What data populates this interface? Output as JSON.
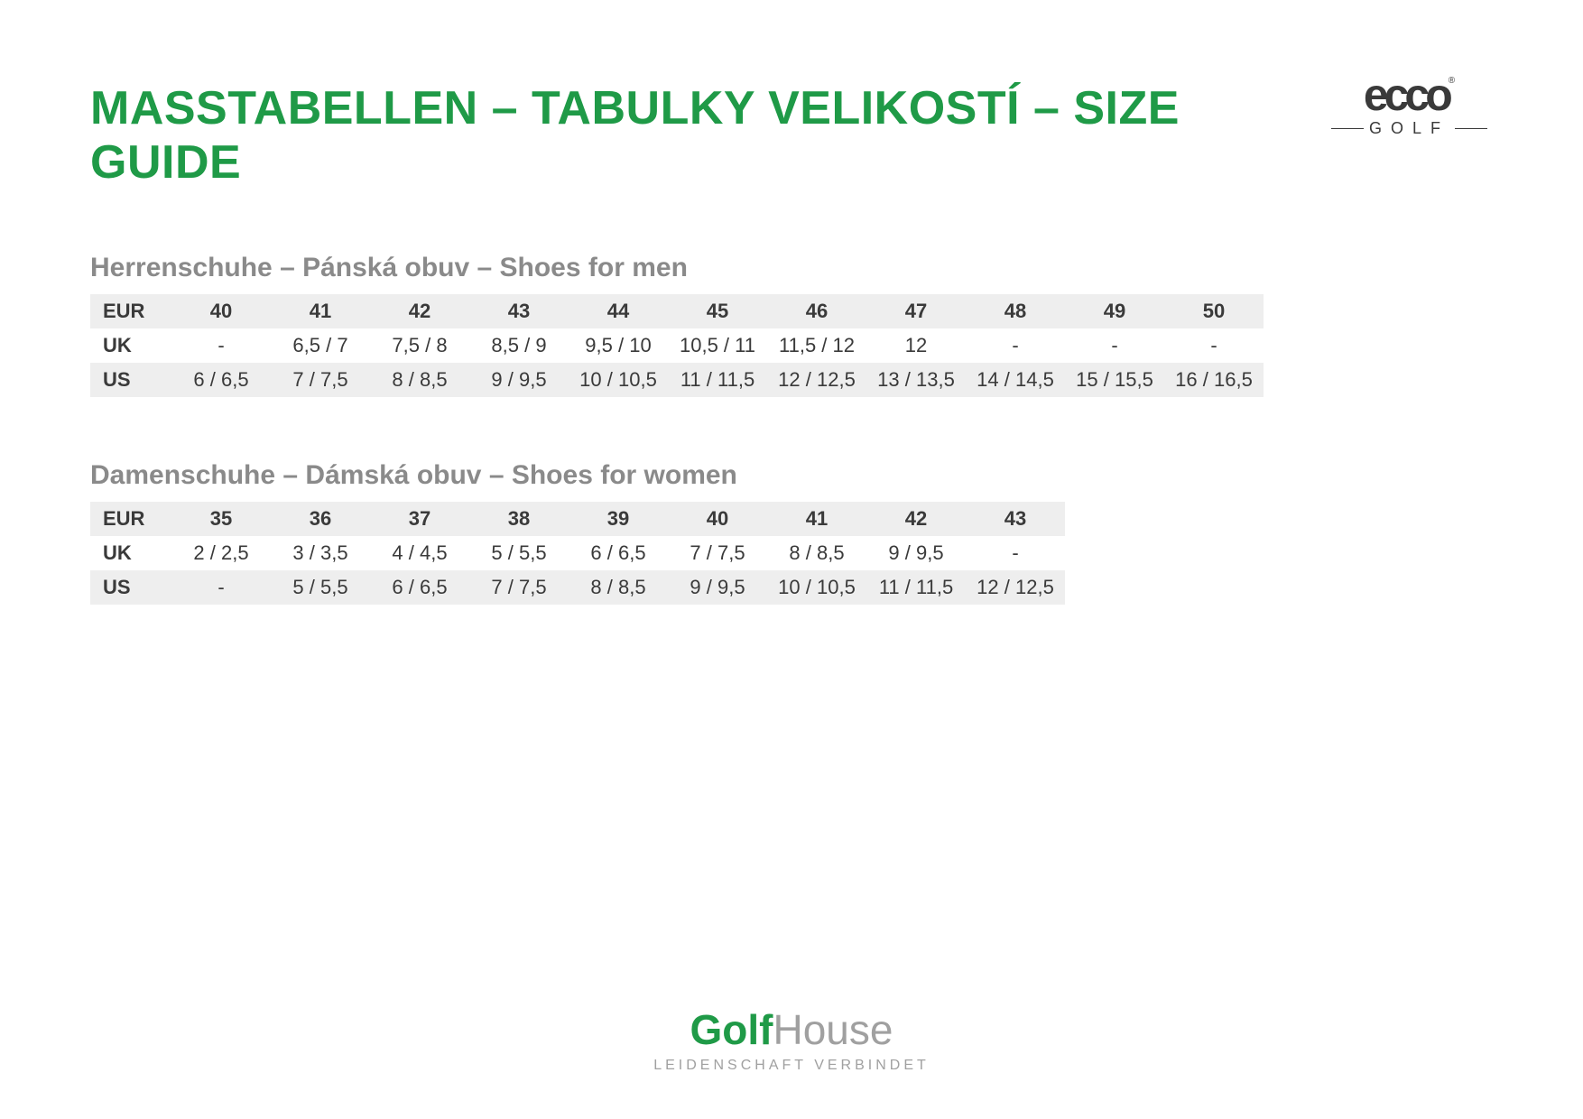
{
  "colors": {
    "title_green": "#1f9a47",
    "text_dark": "#3a3a3a",
    "section_gray": "#8a8a8a",
    "row_shade": "#eeeeee",
    "footer_green": "#1f9a47",
    "footer_gray": "#a0a0a0",
    "ecco_color": "#3a3a3a"
  },
  "title": "MASSTABELLEN – TABULKY VELIKOSTÍ – SIZE GUIDE",
  "ecco": {
    "brand": "ecco",
    "reg": "®",
    "sub": "GOLF"
  },
  "men": {
    "title": "Herrenschuhe – Pánská obuv – Shoes for men",
    "rows": [
      {
        "label": "EUR",
        "cells": [
          "40",
          "41",
          "42",
          "43",
          "44",
          "45",
          "46",
          "47",
          "48",
          "49",
          "50"
        ]
      },
      {
        "label": "UK",
        "cells": [
          "-",
          "6,5 / 7",
          "7,5 / 8",
          "8,5 / 9",
          "9,5 / 10",
          "10,5 / 11",
          "11,5 / 12",
          "12",
          "-",
          "-",
          "-"
        ]
      },
      {
        "label": "US",
        "cells": [
          "6 / 6,5",
          "7 / 7,5",
          "8 / 8,5",
          "9 / 9,5",
          "10 / 10,5",
          "11 / 11,5",
          "12 / 12,5",
          "13 / 13,5",
          "14 / 14,5",
          "15 / 15,5",
          "16 / 16,5"
        ]
      }
    ]
  },
  "women": {
    "title": "Damenschuhe – Dámská obuv – Shoes for women",
    "rows": [
      {
        "label": "EUR",
        "cells": [
          "35",
          "36",
          "37",
          "38",
          "39",
          "40",
          "41",
          "42",
          "43"
        ]
      },
      {
        "label": "UK",
        "cells": [
          "2 / 2,5",
          "3 / 3,5",
          "4 / 4,5",
          "5 / 5,5",
          "6 / 6,5",
          "7 / 7,5",
          "8 / 8,5",
          "9 / 9,5",
          "-"
        ]
      },
      {
        "label": "US",
        "cells": [
          "-",
          "5 / 5,5",
          "6 / 6,5",
          "7 / 7,5",
          "8 / 8,5",
          "9 / 9,5",
          "10 / 10,5",
          "11 / 11,5",
          "12 / 12,5"
        ]
      }
    ]
  },
  "footer": {
    "brand_bold": "Golf",
    "brand_light": "House",
    "tagline": "LEIDENSCHAFT VERBINDET"
  }
}
